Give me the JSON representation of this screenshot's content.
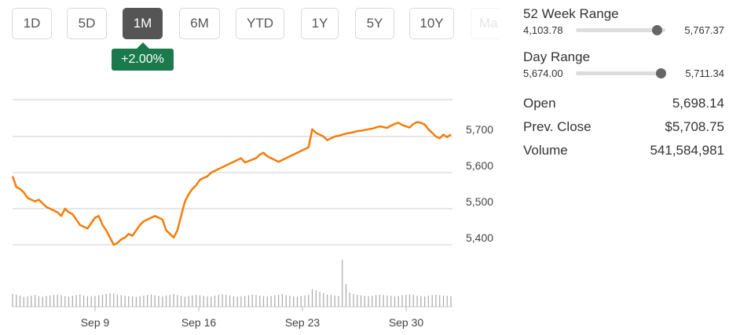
{
  "timeframes": [
    {
      "label": "1D",
      "state": "normal"
    },
    {
      "label": "5D",
      "state": "normal"
    },
    {
      "label": "1M",
      "state": "active"
    },
    {
      "label": "6M",
      "state": "normal"
    },
    {
      "label": "YTD",
      "state": "normal"
    },
    {
      "label": "1Y",
      "state": "normal"
    },
    {
      "label": "5Y",
      "state": "normal"
    },
    {
      "label": "10Y",
      "state": "normal"
    },
    {
      "label": "Max",
      "state": "faded"
    }
  ],
  "change_badge": {
    "text": "+2.00%",
    "color": "#1a7a4c"
  },
  "colors": {
    "line": "#f57c0a",
    "active_tab": "#555555",
    "volume": "#aaaaaa",
    "grid": "#cccccc"
  },
  "week52_range": {
    "title": "52 Week Range",
    "low": "4,103.78",
    "high": "5,767.37",
    "position": 0.9
  },
  "day_range": {
    "title": "Day Range",
    "low": "5,674.00",
    "high": "5,711.34",
    "position": 0.95
  },
  "stats": [
    {
      "label": "Open",
      "value": "5,698.14"
    },
    {
      "label": "Prev. Close",
      "value": "$5,708.75"
    },
    {
      "label": "Volume",
      "value": "541,584,981"
    }
  ],
  "chart_data": {
    "type": "line",
    "x_ticks": [
      "Sep 9",
      "Sep 16",
      "Sep 23",
      "Sep 30"
    ],
    "y_ticks": [
      5700,
      5600,
      5500,
      5400
    ],
    "y_tick_labels": [
      "5,700",
      "5,600",
      "5,500",
      "5,400"
    ],
    "ylim": [
      5390,
      5800
    ],
    "grid": true,
    "series": [
      {
        "color": "#f57c0a",
        "values": [
          5590,
          5560,
          5555,
          5545,
          5530,
          5525,
          5520,
          5525,
          5515,
          5505,
          5500,
          5495,
          5490,
          5480,
          5500,
          5490,
          5485,
          5470,
          5455,
          5450,
          5445,
          5460,
          5475,
          5480,
          5455,
          5440,
          5420,
          5400,
          5405,
          5415,
          5420,
          5430,
          5425,
          5440,
          5455,
          5465,
          5470,
          5475,
          5480,
          5475,
          5470,
          5440,
          5430,
          5420,
          5440,
          5480,
          5520,
          5540,
          5555,
          5565,
          5580,
          5585,
          5590,
          5600,
          5605,
          5610,
          5615,
          5620,
          5625,
          5630,
          5635,
          5640,
          5628,
          5632,
          5636,
          5640,
          5650,
          5655,
          5645,
          5640,
          5635,
          5630,
          5635,
          5640,
          5645,
          5650,
          5655,
          5660,
          5665,
          5670,
          5720,
          5710,
          5705,
          5700,
          5690,
          5695,
          5700,
          5702,
          5705,
          5708,
          5710,
          5712,
          5715,
          5716,
          5718,
          5720,
          5722,
          5725,
          5728,
          5726,
          5724,
          5730,
          5735,
          5738,
          5732,
          5728,
          5725,
          5735,
          5740,
          5738,
          5733,
          5720,
          5710,
          5700,
          5695,
          5705,
          5698,
          5706
        ]
      }
    ],
    "volume": [
      55,
      52,
      48,
      42,
      44,
      47,
      50,
      45,
      43,
      46,
      48,
      50,
      52,
      49,
      45,
      43,
      47,
      50,
      53,
      48,
      45,
      44,
      46,
      49,
      51,
      55,
      58,
      57,
      52,
      50,
      47,
      45,
      43,
      41,
      44,
      47,
      50,
      52,
      49,
      46,
      44,
      48,
      51,
      54,
      50,
      46,
      43,
      45,
      48,
      51,
      49,
      46,
      44,
      43,
      47,
      50,
      53,
      51,
      48,
      45,
      43,
      44,
      46,
      49,
      52,
      50,
      47,
      45,
      43,
      46,
      49,
      51,
      53,
      50,
      47,
      44,
      43,
      46,
      48,
      51,
      75,
      70,
      64,
      58,
      52,
      50,
      48,
      46,
      200,
      96,
      60,
      54,
      50,
      48,
      46,
      45,
      47,
      50,
      52,
      50,
      48,
      46,
      44,
      46,
      49,
      51,
      53,
      50,
      47,
      45,
      44,
      47,
      50,
      52,
      49,
      48,
      46,
      45
    ]
  }
}
